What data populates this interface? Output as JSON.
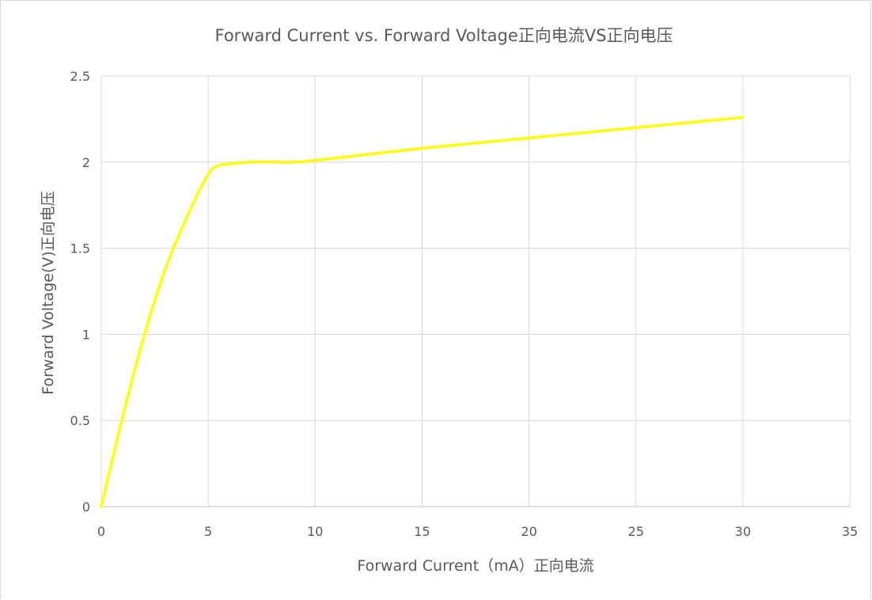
{
  "chart_data": {
    "type": "line",
    "title": "Forward Current vs. Forward Voltage正向电流VS正向电压",
    "xlabel": "Forward Current（mA）正向电流",
    "ylabel": "Forward Voltage(V)正向电压",
    "xlim": [
      0,
      35
    ],
    "ylim": [
      0,
      2.5
    ],
    "x_ticks": [
      "0",
      "5",
      "10",
      "15",
      "20",
      "25",
      "30",
      "35"
    ],
    "y_ticks": [
      "0",
      "0.5",
      "1",
      "1.5",
      "2",
      "2.5"
    ],
    "grid": true,
    "series": [
      {
        "color": "#ffff00",
        "x": [
          0,
          1,
          2,
          3,
          4,
          5,
          5.5,
          6,
          7,
          8,
          9,
          10,
          15,
          20,
          25,
          30
        ],
        "y": [
          0,
          0.52,
          0.99,
          1.38,
          1.68,
          1.93,
          1.98,
          1.99,
          2.0,
          2.0,
          2.0,
          2.01,
          2.08,
          2.14,
          2.2,
          2.26
        ]
      }
    ]
  }
}
